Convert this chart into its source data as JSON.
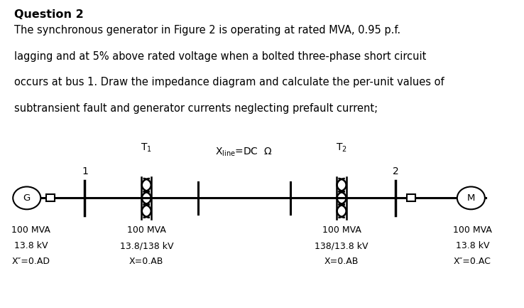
{
  "title": "Question 2",
  "paragraph_lines": [
    "The synchronous generator in Figure 2 is operating at rated MVA, 0.95 p.f.",
    "lagging and at 5% above rated voltage when a bolted three-phase short circuit",
    "occurs at bus 1. Draw the impedance diagram and calculate the per-unit values of",
    "subtransient fault and generator currents neglecting prefault current;"
  ],
  "xline_label": "X",
  "xline_sub": "line",
  "xline_rest": "=DC Ω",
  "T1_label": "T",
  "T1_sub": "1",
  "T2_label": "T",
  "T2_sub": "2",
  "bus1_label": "1",
  "bus2_label": "2",
  "G_label": "G",
  "M_label": "M",
  "gen_specs": [
    "100 MVA",
    "13.8 kV",
    "X″=0.AD"
  ],
  "T1_specs": [
    "100 MVA",
    "13.8/138 kV",
    "X=0.AB"
  ],
  "T2_specs": [
    "100 MVA",
    "138/13.8 kV",
    "X=0.AB"
  ],
  "motor_specs": [
    "100 MVA",
    "13.8 kV",
    "X″=0.AC"
  ],
  "bg_color": "#ffffff",
  "text_color": "#000000",
  "diagram_y": 2.55,
  "xlim": [
    0,
    10
  ],
  "ylim": [
    0,
    7.2
  ]
}
